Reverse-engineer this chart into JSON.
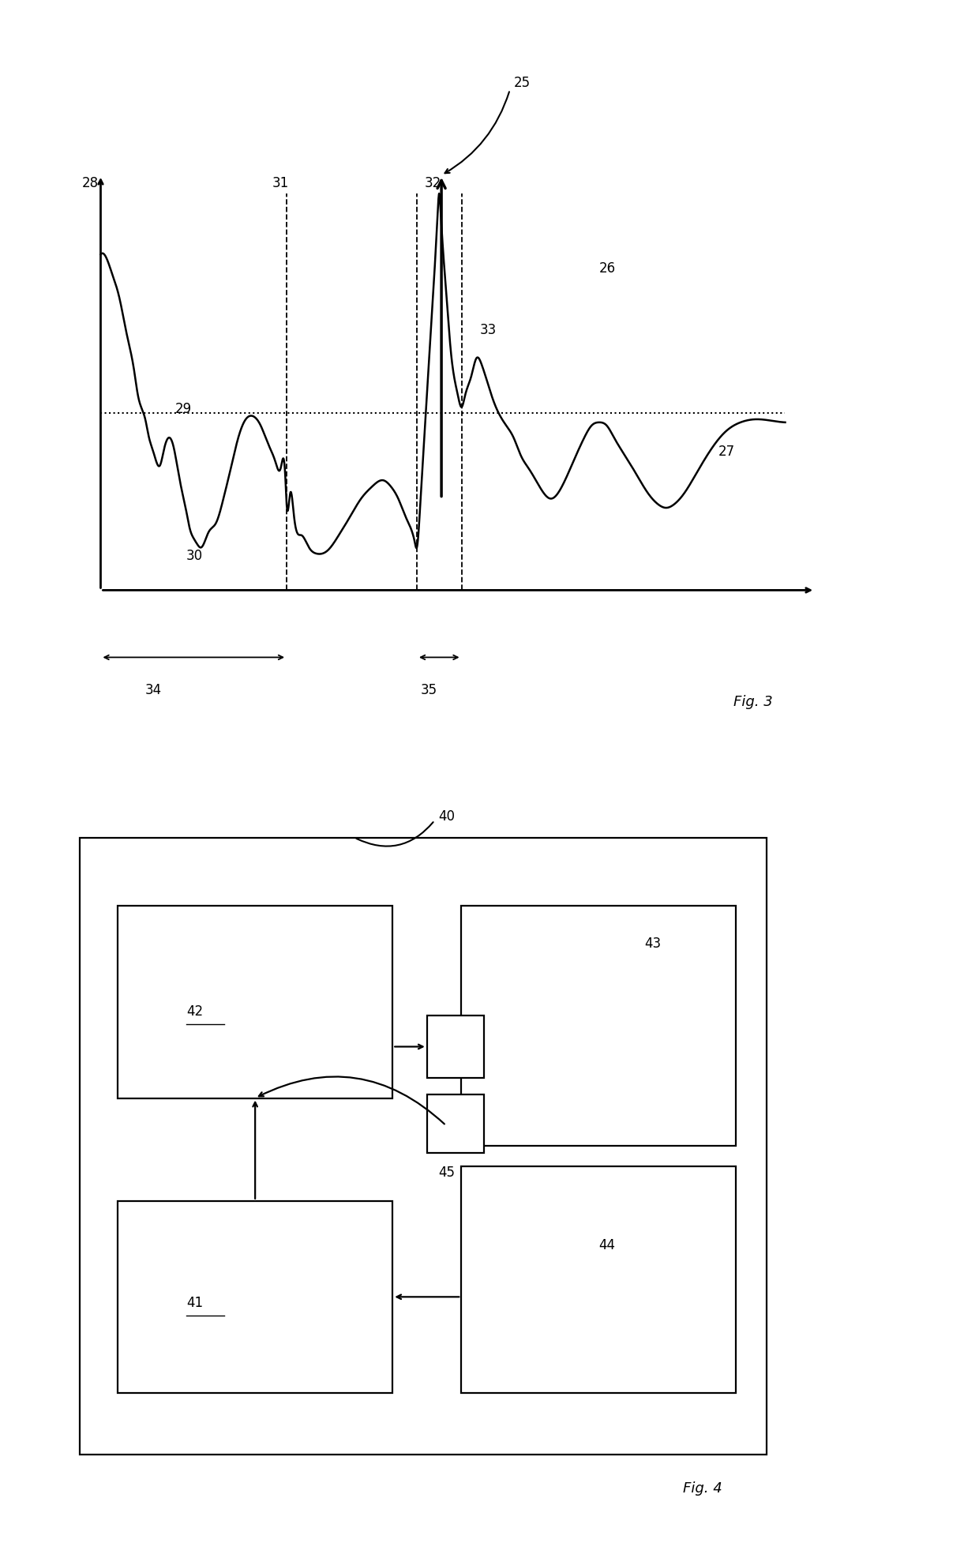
{
  "fig_width": 12.4,
  "fig_height": 19.73,
  "bg_color": "#ffffff",
  "line_color": "#000000",
  "fig3": {
    "title": "Fig. 3",
    "label_25": "25",
    "label_26": "26",
    "label_27": "27",
    "label_28": "28",
    "label_29": "29",
    "label_30": "30",
    "label_31": "31",
    "label_32": "32",
    "label_33": "33",
    "label_34": "34",
    "label_35": "35"
  },
  "fig4": {
    "title": "Fig. 4",
    "label_40": "40",
    "label_41": "41",
    "label_42": "42",
    "label_43": "43",
    "label_44": "44",
    "label_45": "45"
  }
}
